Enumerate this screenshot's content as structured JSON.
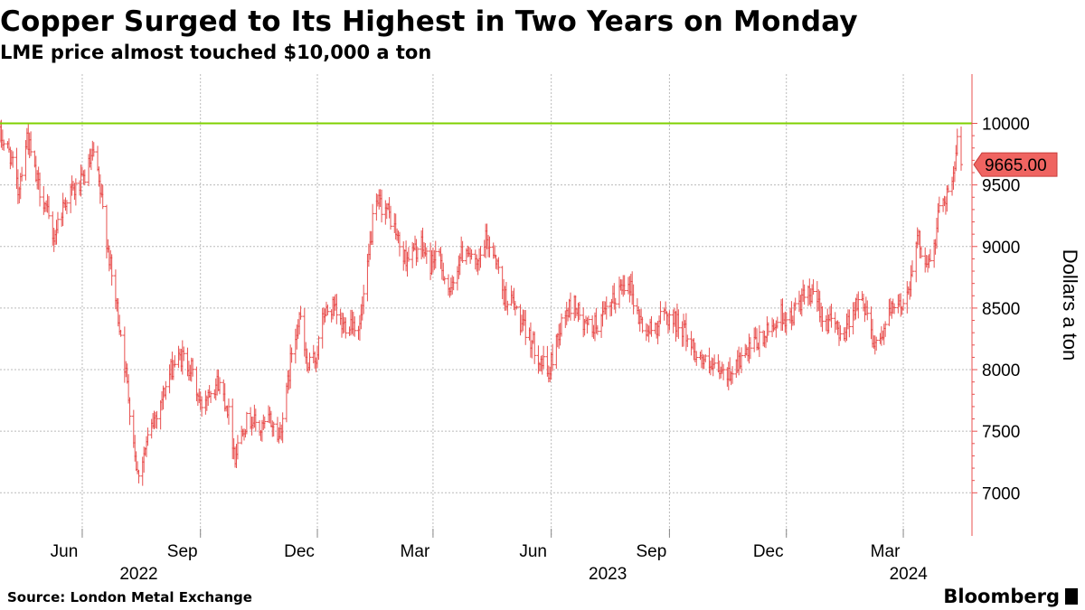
{
  "title": "Copper Surged to Its Highest in Two Years on Monday",
  "subtitle": "LME price almost touched $10,000 a ton",
  "source": "Source: London Metal Exchange",
  "brand": "Bloomberg",
  "colors": {
    "series": "#e8504f",
    "threshold": "#7fd000",
    "grid": "#bbbbbb",
    "axis": "#e8504f",
    "last_label_bg": "#ef6461"
  },
  "chart_data": {
    "type": "line",
    "style": "ohlc-bars",
    "ylabel": "Dollars a ton",
    "ylim": [
      6650,
      10400
    ],
    "yticks": [
      7000,
      7500,
      8000,
      8500,
      9000,
      9500,
      10000
    ],
    "ytick_labels": [
      "7000",
      "7500",
      "8000",
      "8500",
      "9000",
      "9500",
      "10000"
    ],
    "x_start": "2022-03-29",
    "x_end": "2024-04-15",
    "month_ticks": [
      {
        "label": "Jun",
        "date": "2022-06-01"
      },
      {
        "label": "Sep",
        "date": "2022-09-01"
      },
      {
        "label": "Dec",
        "date": "2022-12-01"
      },
      {
        "label": "Mar",
        "date": "2023-03-01"
      },
      {
        "label": "Jun",
        "date": "2023-06-01"
      },
      {
        "label": "Sep",
        "date": "2023-09-01"
      },
      {
        "label": "Dec",
        "date": "2023-12-01"
      },
      {
        "label": "Mar",
        "date": "2024-03-01"
      }
    ],
    "year_labels": [
      {
        "label": "2022",
        "date": "2022-07-15"
      },
      {
        "label": "2023",
        "date": "2023-07-15"
      },
      {
        "label": "2024",
        "date": "2024-03-05"
      }
    ],
    "threshold": 10000,
    "last_value": 9665,
    "last_value_label": "9665.00",
    "anchors": [
      [
        "2022-03-29",
        9900
      ],
      [
        "2022-04-06",
        9750
      ],
      [
        "2022-04-12",
        9450
      ],
      [
        "2022-04-19",
        9900
      ],
      [
        "2022-04-26",
        9550
      ],
      [
        "2022-05-03",
        9350
      ],
      [
        "2022-05-09",
        9050
      ],
      [
        "2022-05-16",
        9300
      ],
      [
        "2022-05-22",
        9450
      ],
      [
        "2022-05-26",
        9450
      ],
      [
        "2022-06-01",
        9520
      ],
      [
        "2022-06-06",
        9650
      ],
      [
        "2022-06-10",
        9750
      ],
      [
        "2022-06-17",
        9300
      ],
      [
        "2022-06-24",
        8750
      ],
      [
        "2022-07-01",
        8300
      ],
      [
        "2022-07-08",
        7700
      ],
      [
        "2022-07-14",
        7150
      ],
      [
        "2022-07-20",
        7350
      ],
      [
        "2022-07-27",
        7600
      ],
      [
        "2022-08-03",
        7800
      ],
      [
        "2022-08-11",
        8050
      ],
      [
        "2022-08-18",
        8100
      ],
      [
        "2022-08-25",
        8000
      ],
      [
        "2022-09-01",
        7700
      ],
      [
        "2022-09-08",
        7850
      ],
      [
        "2022-09-15",
        7900
      ],
      [
        "2022-09-22",
        7700
      ],
      [
        "2022-09-28",
        7300
      ],
      [
        "2022-10-04",
        7550
      ],
      [
        "2022-10-11",
        7600
      ],
      [
        "2022-10-18",
        7500
      ],
      [
        "2022-10-25",
        7600
      ],
      [
        "2022-11-01",
        7450
      ],
      [
        "2022-11-07",
        7800
      ],
      [
        "2022-11-11",
        8150
      ],
      [
        "2022-11-17",
        8450
      ],
      [
        "2022-11-23",
        8000
      ],
      [
        "2022-11-30",
        8100
      ],
      [
        "2022-12-06",
        8450
      ],
      [
        "2022-12-13",
        8500
      ],
      [
        "2022-12-20",
        8350
      ],
      [
        "2022-12-27",
        8400
      ],
      [
        "2023-01-03",
        8350
      ],
      [
        "2023-01-09",
        8800
      ],
      [
        "2023-01-13",
        9200
      ],
      [
        "2023-01-18",
        9350
      ],
      [
        "2023-01-24",
        9300
      ],
      [
        "2023-01-30",
        9150
      ],
      [
        "2023-02-06",
        8900
      ],
      [
        "2023-02-13",
        8950
      ],
      [
        "2023-02-20",
        9000
      ],
      [
        "2023-02-27",
        8850
      ],
      [
        "2023-03-03",
        8950
      ],
      [
        "2023-03-09",
        8800
      ],
      [
        "2023-03-15",
        8600
      ],
      [
        "2023-03-21",
        8900
      ],
      [
        "2023-03-28",
        9000
      ],
      [
        "2023-04-04",
        8800
      ],
      [
        "2023-04-11",
        9050
      ],
      [
        "2023-04-18",
        8950
      ],
      [
        "2023-04-25",
        8600
      ],
      [
        "2023-05-02",
        8550
      ],
      [
        "2023-05-09",
        8350
      ],
      [
        "2023-05-16",
        8250
      ],
      [
        "2023-05-23",
        8100
      ],
      [
        "2023-05-30",
        7950
      ],
      [
        "2023-06-05",
        8250
      ],
      [
        "2023-06-12",
        8450
      ],
      [
        "2023-06-19",
        8550
      ],
      [
        "2023-06-26",
        8350
      ],
      [
        "2023-07-03",
        8350
      ],
      [
        "2023-07-10",
        8400
      ],
      [
        "2023-07-17",
        8500
      ],
      [
        "2023-07-24",
        8650
      ],
      [
        "2023-07-31",
        8750
      ],
      [
        "2023-08-07",
        8450
      ],
      [
        "2023-08-14",
        8300
      ],
      [
        "2023-08-21",
        8350
      ],
      [
        "2023-08-28",
        8450
      ],
      [
        "2023-09-04",
        8400
      ],
      [
        "2023-09-11",
        8350
      ],
      [
        "2023-09-18",
        8200
      ],
      [
        "2023-09-25",
        8100
      ],
      [
        "2023-10-02",
        8000
      ],
      [
        "2023-10-09",
        7980
      ],
      [
        "2023-10-16",
        7950
      ],
      [
        "2023-10-23",
        8050
      ],
      [
        "2023-10-30",
        8100
      ],
      [
        "2023-11-06",
        8200
      ],
      [
        "2023-11-13",
        8250
      ],
      [
        "2023-11-20",
        8350
      ],
      [
        "2023-11-27",
        8450
      ],
      [
        "2023-12-04",
        8400
      ],
      [
        "2023-12-11",
        8550
      ],
      [
        "2023-12-18",
        8600
      ],
      [
        "2023-12-25",
        8550
      ],
      [
        "2024-01-01",
        8400
      ],
      [
        "2024-01-08",
        8350
      ],
      [
        "2024-01-15",
        8300
      ],
      [
        "2024-01-22",
        8500
      ],
      [
        "2024-01-29",
        8550
      ],
      [
        "2024-02-02",
        8500
      ],
      [
        "2024-02-06",
        8250
      ],
      [
        "2024-02-12",
        8250
      ],
      [
        "2024-02-19",
        8450
      ],
      [
        "2024-02-26",
        8500
      ],
      [
        "2024-03-01",
        8550
      ],
      [
        "2024-03-05",
        8650
      ],
      [
        "2024-03-09",
        8950
      ],
      [
        "2024-03-13",
        9050
      ],
      [
        "2024-03-18",
        8900
      ],
      [
        "2024-03-21",
        8850
      ],
      [
        "2024-03-26",
        9050
      ],
      [
        "2024-03-29",
        9350
      ],
      [
        "2024-04-03",
        9420
      ],
      [
        "2024-04-07",
        9500
      ],
      [
        "2024-04-10",
        9580
      ],
      [
        "2024-04-12",
        9900
      ],
      [
        "2024-04-15",
        9665
      ]
    ]
  }
}
